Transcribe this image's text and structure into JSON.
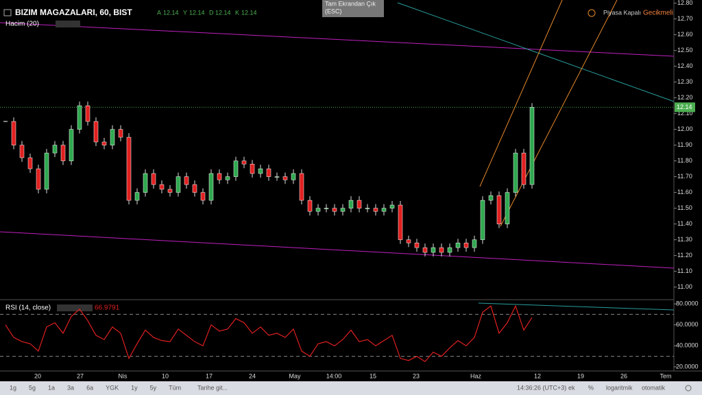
{
  "header": {
    "symbol": "BIZIM MAGAZALARI, 60, BIST",
    "ohlc": [
      {
        "label": "A",
        "value": 12.14
      },
      {
        "label": "Y",
        "value": 12.14
      },
      {
        "label": "D",
        "value": 12.14
      },
      {
        "label": "K",
        "value": 12.14
      }
    ],
    "volume": "Hacim (20)",
    "tooltip": [
      "Tam Ekrandan Çık",
      "(ESC)"
    ],
    "market_status": "Piyasa Kapalı",
    "delay": "Gecikmeli"
  },
  "price_chart": {
    "ylim": [
      10.92,
      12.82
    ],
    "yticks": [
      {
        "value": 12.8,
        "label": "12.80"
      },
      {
        "value": 12.7,
        "label": "12.70"
      },
      {
        "value": 12.6,
        "label": "12.60"
      },
      {
        "value": 12.5,
        "label": "12.50"
      },
      {
        "value": 12.4,
        "label": "12.40"
      },
      {
        "value": 12.3,
        "label": "12.30"
      },
      {
        "value": 12.2,
        "label": "12.20"
      },
      {
        "value": 12.1,
        "label": "12.10"
      },
      {
        "value": 12.0,
        "label": "12.00"
      },
      {
        "value": 11.9,
        "label": "11.90"
      },
      {
        "value": 11.8,
        "label": "11.80"
      },
      {
        "value": 11.7,
        "label": "11.70"
      },
      {
        "value": 11.6,
        "label": "11.60"
      },
      {
        "value": 11.5,
        "label": "11.50"
      },
      {
        "value": 11.4,
        "label": "11.40"
      },
      {
        "value": 11.3,
        "label": "11.30"
      },
      {
        "value": 11.2,
        "label": "11.20"
      },
      {
        "value": 11.1,
        "label": "11.10"
      },
      {
        "value": 11.0,
        "label": "11.00"
      }
    ],
    "last_price": 12.14,
    "closes": [
      12.05,
      11.9,
      11.82,
      11.75,
      11.62,
      11.85,
      11.9,
      11.8,
      12.0,
      12.15,
      12.05,
      11.92,
      11.9,
      12.0,
      11.95,
      11.55,
      11.6,
      11.72,
      11.65,
      11.62,
      11.6,
      11.7,
      11.65,
      11.6,
      11.55,
      11.72,
      11.68,
      11.7,
      11.8,
      11.78,
      11.72,
      11.75,
      11.7,
      11.7,
      11.68,
      11.72,
      11.55,
      11.48,
      11.5,
      11.5,
      11.48,
      11.5,
      11.55,
      11.5,
      11.5,
      11.48,
      11.5,
      11.52,
      11.3,
      11.28,
      11.25,
      11.22,
      11.25,
      11.22,
      11.25,
      11.28,
      11.25,
      11.3,
      11.55,
      11.58,
      11.4,
      11.6,
      11.85,
      11.65,
      12.14
    ],
    "xticks": [
      "20",
      "27",
      "Nis",
      "10",
      "17",
      "24",
      "May",
      "14:00",
      "15",
      "23",
      "Haz",
      "12",
      "19",
      "26",
      "Tem"
    ]
  },
  "rsi": {
    "label": "RSI (14, close)",
    "value": 66.9791,
    "ylim": [
      16,
      84
    ],
    "yticks": [
      {
        "value": 80,
        "label": "80.0000"
      },
      {
        "value": 60,
        "label": "60.0000"
      },
      {
        "value": 40,
        "label": "40.0000"
      },
      {
        "value": 20,
        "label": "20.0000"
      }
    ],
    "values": [
      60,
      48,
      44,
      42,
      35,
      58,
      62,
      52,
      68,
      75,
      64,
      50,
      46,
      58,
      52,
      28,
      42,
      55,
      48,
      45,
      44,
      56,
      50,
      44,
      40,
      60,
      54,
      56,
      66,
      62,
      52,
      58,
      50,
      52,
      48,
      56,
      35,
      30,
      42,
      44,
      40,
      46,
      55,
      44,
      46,
      40,
      45,
      50,
      28,
      26,
      30,
      25,
      34,
      30,
      38,
      45,
      40,
      48,
      72,
      78,
      52,
      62,
      78,
      55,
      66.9791
    ]
  },
  "bottom_bar": {
    "ranges": [
      "1g",
      "5g",
      "1a",
      "3a",
      "6a",
      "YGK",
      "1y",
      "5y",
      "Tüm"
    ],
    "goto": "Tarihe git...",
    "clock": "14:36:26 (UTC+3)",
    "options": [
      "ek",
      "%",
      "logaritmik",
      "otomatik"
    ]
  }
}
